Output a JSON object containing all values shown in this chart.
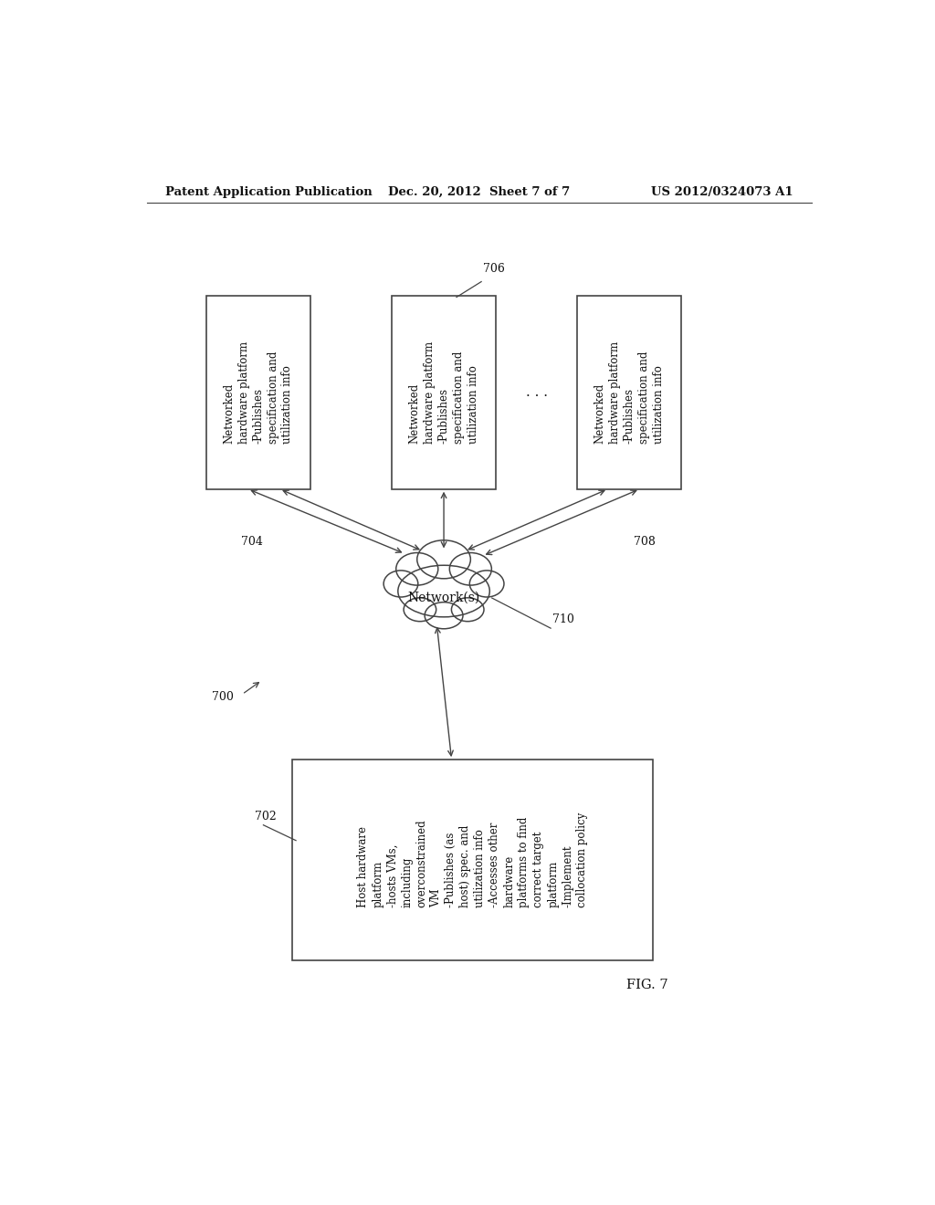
{
  "bg_color": "#ffffff",
  "header_left": "Patent Application Publication",
  "header_center": "Dec. 20, 2012  Sheet 7 of 7",
  "header_right": "US 2012/0324073 A1",
  "fig_label": "FIG. 7",
  "diagram_ref": "700",
  "box_top_label": "Networked\nhardware platform\n-Publishes\nspecification and\nutilization info",
  "cloud_label": "Network(s)",
  "host_box_label": "Host hardware\nplatform\n-hosts VMs,\nincluding\noverconstrained\nVM\n-Publishes (as\nhost) spec. and\nutilization info\n-Accesses other\nhardware\nplatforms to find\ncorrect target\nplatform\n-Implement\ncollocation policy",
  "label_706": "706",
  "label_704": "704",
  "label_708": "708",
  "label_710": "710",
  "label_702": "702",
  "dots": ". . .",
  "line_color": "#444444",
  "text_color": "#111111",
  "font_size_header": 9.5,
  "font_size_box": 8.5,
  "font_size_label": 9,
  "font_size_host": 8.5
}
